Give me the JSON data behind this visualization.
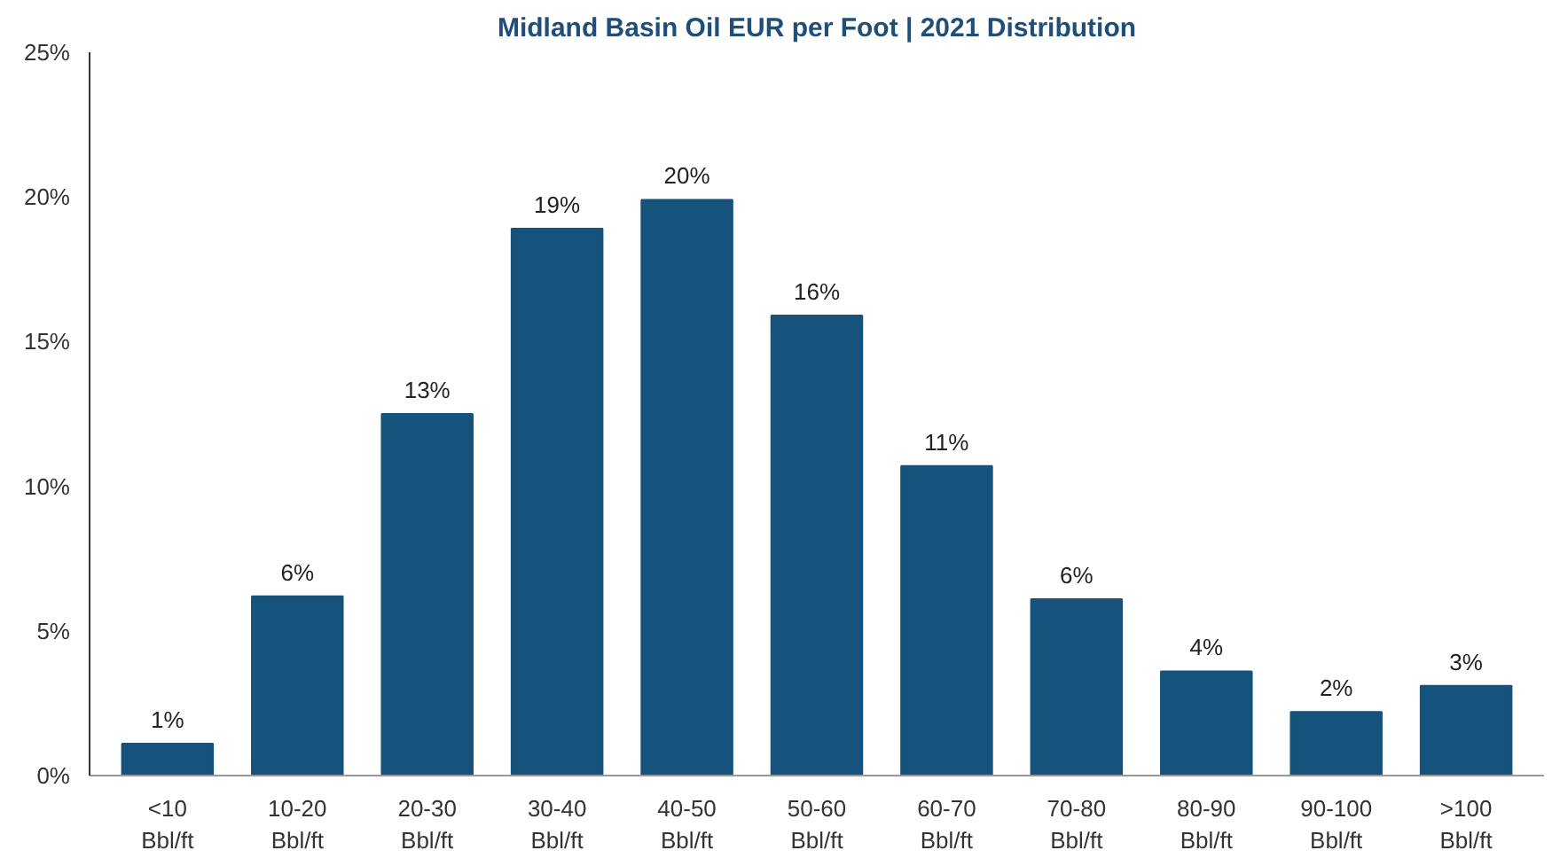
{
  "chart_data": {
    "type": "bar",
    "title": "Midland Basin Oil EUR per Foot | 2021 Distribution",
    "categories": [
      "<10\nBbl/ft",
      "10-20\nBbl/ft",
      "20-30\nBbl/ft",
      "30-40\nBbl/ft",
      "40-50\nBbl/ft",
      "50-60\nBbl/ft",
      "60-70\nBbl/ft",
      "70-80\nBbl/ft",
      "80-90\nBbl/ft",
      "90-100\nBbl/ft",
      ">100\nBbl/ft"
    ],
    "values": [
      1.1,
      6.2,
      12.5,
      18.9,
      19.9,
      15.9,
      10.7,
      6.1,
      3.6,
      2.2,
      3.1
    ],
    "value_labels": [
      "1%",
      "6%",
      "13%",
      "19%",
      "20%",
      "16%",
      "11%",
      "6%",
      "4%",
      "2%",
      "3%"
    ],
    "color": "#15527c",
    "ylim": [
      0,
      25
    ],
    "yticks": [
      {
        "value": 0,
        "label": "0%"
      },
      {
        "value": 5,
        "label": "5%"
      },
      {
        "value": 10,
        "label": "10%"
      },
      {
        "value": 15,
        "label": "15%"
      },
      {
        "value": 20,
        "label": "20%"
      },
      {
        "value": 25,
        "label": "25%"
      }
    ],
    "grid": false
  }
}
